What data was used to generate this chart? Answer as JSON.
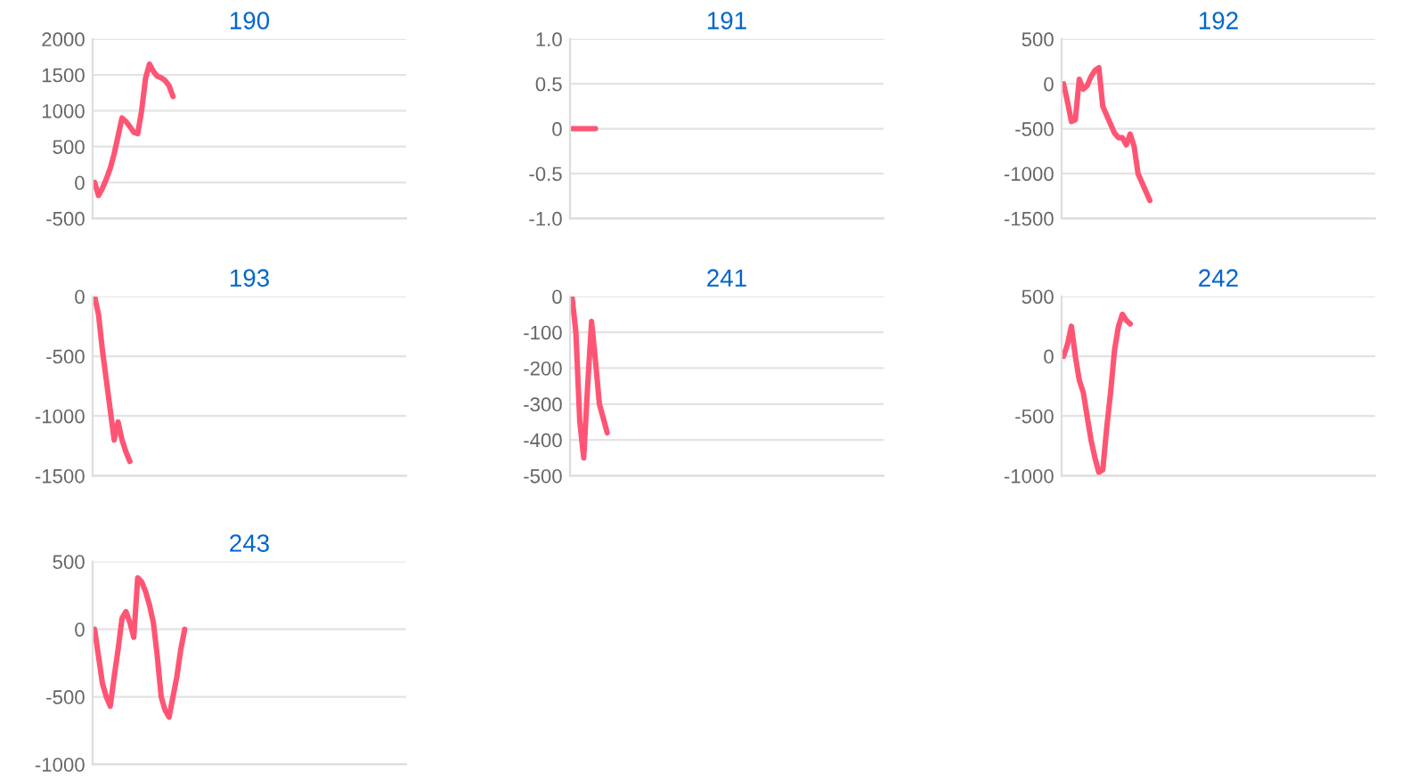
{
  "chart_data": [
    {
      "type": "line",
      "title": "190",
      "tick_labels": "y",
      "grid": "y",
      "color": "#ff5575",
      "ylim": [
        -500,
        2000
      ],
      "yticks": [
        -500,
        0,
        500,
        1000,
        1500,
        2000
      ],
      "categories": [
        null,
        null,
        null,
        null,
        null,
        null,
        null,
        null,
        null,
        null,
        null,
        null,
        null,
        null,
        null,
        null,
        null,
        null,
        null,
        null,
        null,
        null,
        null,
        null,
        null,
        null,
        null,
        null,
        null,
        null,
        null,
        null,
        null,
        null,
        null,
        null,
        null,
        null,
        null,
        null,
        null,
        null,
        null,
        null,
        null,
        null,
        null,
        null,
        null,
        null,
        null,
        null,
        null,
        null,
        null,
        null,
        null,
        null,
        null,
        null,
        null,
        null,
        null,
        null,
        null,
        null,
        null,
        null,
        null,
        null,
        null,
        null,
        null,
        null,
        null,
        null,
        null,
        null,
        null,
        null
      ],
      "values": [
        0,
        -180,
        -80,
        50,
        200,
        400,
        650,
        900,
        850,
        780,
        700,
        680,
        1000,
        1450,
        1650,
        1550,
        1480,
        1460,
        1420,
        1350,
        1200,
        null,
        null,
        null,
        null,
        null,
        null,
        null,
        null,
        null,
        null,
        null,
        null,
        null,
        null,
        null,
        null,
        null,
        null,
        null,
        null,
        null,
        null,
        null,
        null,
        null,
        null,
        null,
        null,
        null,
        null,
        null,
        null,
        null,
        null,
        null,
        null,
        null,
        null,
        null,
        null,
        null,
        null,
        null,
        null,
        null,
        null,
        null,
        null,
        null,
        null,
        null,
        null,
        null,
        null,
        null,
        null,
        null,
        null,
        null
      ]
    },
    {
      "type": "line",
      "title": "191",
      "tick_labels": "y",
      "grid": "y",
      "color": "#ff5575",
      "ylim": [
        -1,
        1
      ],
      "yticks": [
        {
          "value": -1,
          "label": "-1.0"
        },
        {
          "value": -0.5,
          "label": "-0.5"
        },
        0,
        {
          "value": 0.5,
          "label": "0.5"
        },
        {
          "value": 1,
          "label": "1.0"
        }
      ],
      "categories": [
        null,
        null,
        null,
        null,
        null,
        null,
        null,
        null,
        null,
        null,
        null,
        null,
        null,
        null,
        null,
        null,
        null,
        null,
        null,
        null,
        null,
        null,
        null,
        null,
        null,
        null,
        null,
        null,
        null,
        null,
        null,
        null,
        null,
        null,
        null,
        null,
        null,
        null,
        null,
        null,
        null,
        null,
        null,
        null,
        null,
        null,
        null,
        null,
        null,
        null,
        null,
        null,
        null,
        null,
        null,
        null,
        null,
        null,
        null,
        null,
        null,
        null,
        null,
        null,
        null,
        null,
        null,
        null,
        null,
        null,
        null,
        null,
        null,
        null,
        null,
        null,
        null,
        null,
        null,
        null
      ],
      "values": [
        0,
        0,
        0,
        0,
        0,
        0,
        0,
        null,
        null,
        null,
        null,
        null,
        null,
        null,
        null,
        null,
        null,
        null,
        null,
        null,
        null,
        null,
        null,
        null,
        null,
        null,
        null,
        null,
        null,
        null,
        null,
        null,
        null,
        null,
        null,
        null,
        null,
        null,
        null,
        null,
        null,
        null,
        null,
        null,
        null,
        null,
        null,
        null,
        null,
        null,
        null,
        null,
        null,
        null,
        null,
        null,
        null,
        null,
        null,
        null,
        null,
        null,
        null,
        null,
        null,
        null,
        null,
        null,
        null,
        null,
        null,
        null,
        null,
        null,
        null,
        null,
        null,
        null,
        null,
        null
      ]
    },
    {
      "type": "line",
      "title": "192",
      "tick_labels": "y",
      "grid": "y",
      "color": "#ff5575",
      "ylim": [
        -1500,
        500
      ],
      "yticks": [
        -1500,
        -1000,
        -500,
        0,
        500
      ],
      "categories": [
        null,
        null,
        null,
        null,
        null,
        null,
        null,
        null,
        null,
        null,
        null,
        null,
        null,
        null,
        null,
        null,
        null,
        null,
        null,
        null,
        null,
        null,
        null,
        null,
        null,
        null,
        null,
        null,
        null,
        null,
        null,
        null,
        null,
        null,
        null,
        null,
        null,
        null,
        null,
        null,
        null,
        null,
        null,
        null,
        null,
        null,
        null,
        null,
        null,
        null,
        null,
        null,
        null,
        null,
        null,
        null,
        null,
        null,
        null,
        null,
        null,
        null,
        null,
        null,
        null,
        null,
        null,
        null,
        null,
        null,
        null,
        null,
        null,
        null,
        null,
        null,
        null,
        null,
        null,
        null
      ],
      "values": [
        0,
        -200,
        -420,
        -400,
        50,
        -60,
        -20,
        80,
        150,
        180,
        -250,
        -350,
        -450,
        -550,
        -600,
        -600,
        -680,
        -560,
        -700,
        -1000,
        -1100,
        -1200,
        -1300,
        null,
        null,
        null,
        null,
        null,
        null,
        null,
        null,
        null,
        null,
        null,
        null,
        null,
        null,
        null,
        null,
        null,
        null,
        null,
        null,
        null,
        null,
        null,
        null,
        null,
        null,
        null,
        null,
        null,
        null,
        null,
        null,
        null,
        null,
        null,
        null,
        null,
        null,
        null,
        null,
        null,
        null,
        null,
        null,
        null,
        null,
        null,
        null,
        null,
        null,
        null,
        null,
        null,
        null,
        null,
        null,
        null
      ]
    },
    {
      "type": "line",
      "title": "193",
      "tick_labels": "y",
      "grid": "y",
      "color": "#ff5575",
      "ylim": [
        -1500,
        0
      ],
      "yticks": [
        -1500,
        -1000,
        -500,
        0
      ],
      "categories": [
        null,
        null,
        null,
        null,
        null,
        null,
        null,
        null,
        null,
        null,
        null,
        null,
        null,
        null,
        null,
        null,
        null,
        null,
        null,
        null,
        null,
        null,
        null,
        null,
        null,
        null,
        null,
        null,
        null,
        null,
        null,
        null,
        null,
        null,
        null,
        null,
        null,
        null,
        null,
        null,
        null,
        null,
        null,
        null,
        null,
        null,
        null,
        null,
        null,
        null,
        null,
        null,
        null,
        null,
        null,
        null,
        null,
        null,
        null,
        null,
        null,
        null,
        null,
        null,
        null,
        null,
        null,
        null,
        null,
        null,
        null,
        null,
        null,
        null,
        null,
        null,
        null,
        null,
        null,
        null
      ],
      "values": [
        0,
        -150,
        -450,
        -700,
        -950,
        -1200,
        -1050,
        -1200,
        -1300,
        -1380,
        null,
        null,
        null,
        null,
        null,
        null,
        null,
        null,
        null,
        null,
        null,
        null,
        null,
        null,
        null,
        null,
        null,
        null,
        null,
        null,
        null,
        null,
        null,
        null,
        null,
        null,
        null,
        null,
        null,
        null,
        null,
        null,
        null,
        null,
        null,
        null,
        null,
        null,
        null,
        null,
        null,
        null,
        null,
        null,
        null,
        null,
        null,
        null,
        null,
        null,
        null,
        null,
        null,
        null,
        null,
        null,
        null,
        null,
        null,
        null,
        null,
        null,
        null,
        null,
        null,
        null,
        null,
        null,
        null,
        null
      ]
    },
    {
      "type": "line",
      "title": "241",
      "tick_labels": "y",
      "grid": "y",
      "color": "#ff5575",
      "ylim": [
        -500,
        0
      ],
      "yticks": [
        -500,
        -400,
        -300,
        -200,
        -100,
        0
      ],
      "categories": [
        null,
        null,
        null,
        null,
        null,
        null,
        null,
        null,
        null,
        null,
        null,
        null,
        null,
        null,
        null,
        null,
        null,
        null,
        null,
        null,
        null,
        null,
        null,
        null,
        null,
        null,
        null,
        null,
        null,
        null,
        null,
        null,
        null,
        null,
        null,
        null,
        null,
        null,
        null,
        null,
        null,
        null,
        null,
        null,
        null,
        null,
        null,
        null,
        null,
        null,
        null,
        null,
        null,
        null,
        null,
        null,
        null,
        null,
        null,
        null,
        null,
        null,
        null,
        null,
        null,
        null,
        null,
        null,
        null,
        null,
        null,
        null,
        null,
        null,
        null,
        null,
        null,
        null,
        null,
        null
      ],
      "values": [
        0,
        -100,
        -350,
        -450,
        -250,
        -70,
        -180,
        -300,
        -340,
        -380,
        null,
        null,
        null,
        null,
        null,
        null,
        null,
        null,
        null,
        null,
        null,
        null,
        null,
        null,
        null,
        null,
        null,
        null,
        null,
        null,
        null,
        null,
        null,
        null,
        null,
        null,
        null,
        null,
        null,
        null,
        null,
        null,
        null,
        null,
        null,
        null,
        null,
        null,
        null,
        null,
        null,
        null,
        null,
        null,
        null,
        null,
        null,
        null,
        null,
        null,
        null,
        null,
        null,
        null,
        null,
        null,
        null,
        null,
        null,
        null,
        null,
        null,
        null,
        null,
        null,
        null,
        null,
        null,
        null,
        null
      ]
    },
    {
      "type": "line",
      "title": "242",
      "tick_labels": "y",
      "grid": "y",
      "color": "#ff5575",
      "ylim": [
        -1000,
        500
      ],
      "yticks": [
        -1000,
        -500,
        0,
        500
      ],
      "categories": [
        null,
        null,
        null,
        null,
        null,
        null,
        null,
        null,
        null,
        null,
        null,
        null,
        null,
        null,
        null,
        null,
        null,
        null,
        null,
        null,
        null,
        null,
        null,
        null,
        null,
        null,
        null,
        null,
        null,
        null,
        null,
        null,
        null,
        null,
        null,
        null,
        null,
        null,
        null,
        null,
        null,
        null,
        null,
        null,
        null,
        null,
        null,
        null,
        null,
        null,
        null,
        null,
        null,
        null,
        null,
        null,
        null,
        null,
        null,
        null,
        null,
        null,
        null,
        null,
        null,
        null,
        null,
        null,
        null,
        null,
        null,
        null,
        null,
        null,
        null,
        null,
        null,
        null,
        null,
        null
      ],
      "values": [
        0,
        100,
        250,
        0,
        -200,
        -300,
        -500,
        -700,
        -850,
        -970,
        -950,
        -600,
        -300,
        50,
        250,
        350,
        300,
        270,
        null,
        null,
        null,
        null,
        null,
        null,
        null,
        null,
        null,
        null,
        null,
        null,
        null,
        null,
        null,
        null,
        null,
        null,
        null,
        null,
        null,
        null,
        null,
        null,
        null,
        null,
        null,
        null,
        null,
        null,
        null,
        null,
        null,
        null,
        null,
        null,
        null,
        null,
        null,
        null,
        null,
        null,
        null,
        null,
        null,
        null,
        null,
        null,
        null,
        null,
        null,
        null,
        null,
        null,
        null,
        null,
        null,
        null,
        null,
        null,
        null,
        null
      ]
    },
    {
      "type": "line",
      "title": "243",
      "tick_labels": "y",
      "grid": "y",
      "color": "#ff5575",
      "ylim": [
        -1000,
        500
      ],
      "yticks": [
        -1000,
        -500,
        0,
        500
      ],
      "categories": [
        null,
        null,
        null,
        null,
        null,
        null,
        null,
        null,
        null,
        null,
        null,
        null,
        null,
        null,
        null,
        null,
        null,
        null,
        null,
        null,
        null,
        null,
        null,
        null,
        null,
        null,
        null,
        null,
        null,
        null,
        null,
        null,
        null,
        null,
        null,
        null,
        null,
        null,
        null,
        null,
        null,
        null,
        null,
        null,
        null,
        null,
        null,
        null,
        null,
        null,
        null,
        null,
        null,
        null,
        null,
        null,
        null,
        null,
        null,
        null,
        null,
        null,
        null,
        null,
        null,
        null,
        null,
        null,
        null,
        null,
        null,
        null,
        null,
        null,
        null,
        null,
        null,
        null,
        null,
        null
      ],
      "values": [
        0,
        -200,
        -400,
        -500,
        -570,
        -350,
        -150,
        80,
        130,
        50,
        -60,
        380,
        350,
        280,
        180,
        50,
        -200,
        -500,
        -600,
        -650,
        -500,
        -350,
        -150,
        0,
        null,
        null,
        null,
        null,
        null,
        null,
        null,
        null,
        null,
        null,
        null,
        null,
        null,
        null,
        null,
        null,
        null,
        null,
        null,
        null,
        null,
        null,
        null,
        null,
        null,
        null,
        null,
        null,
        null,
        null,
        null,
        null,
        null,
        null,
        null,
        null,
        null,
        null,
        null,
        null,
        null,
        null,
        null,
        null,
        null,
        null,
        null,
        null,
        null,
        null,
        null,
        null,
        null,
        null,
        null,
        null
      ]
    }
  ]
}
